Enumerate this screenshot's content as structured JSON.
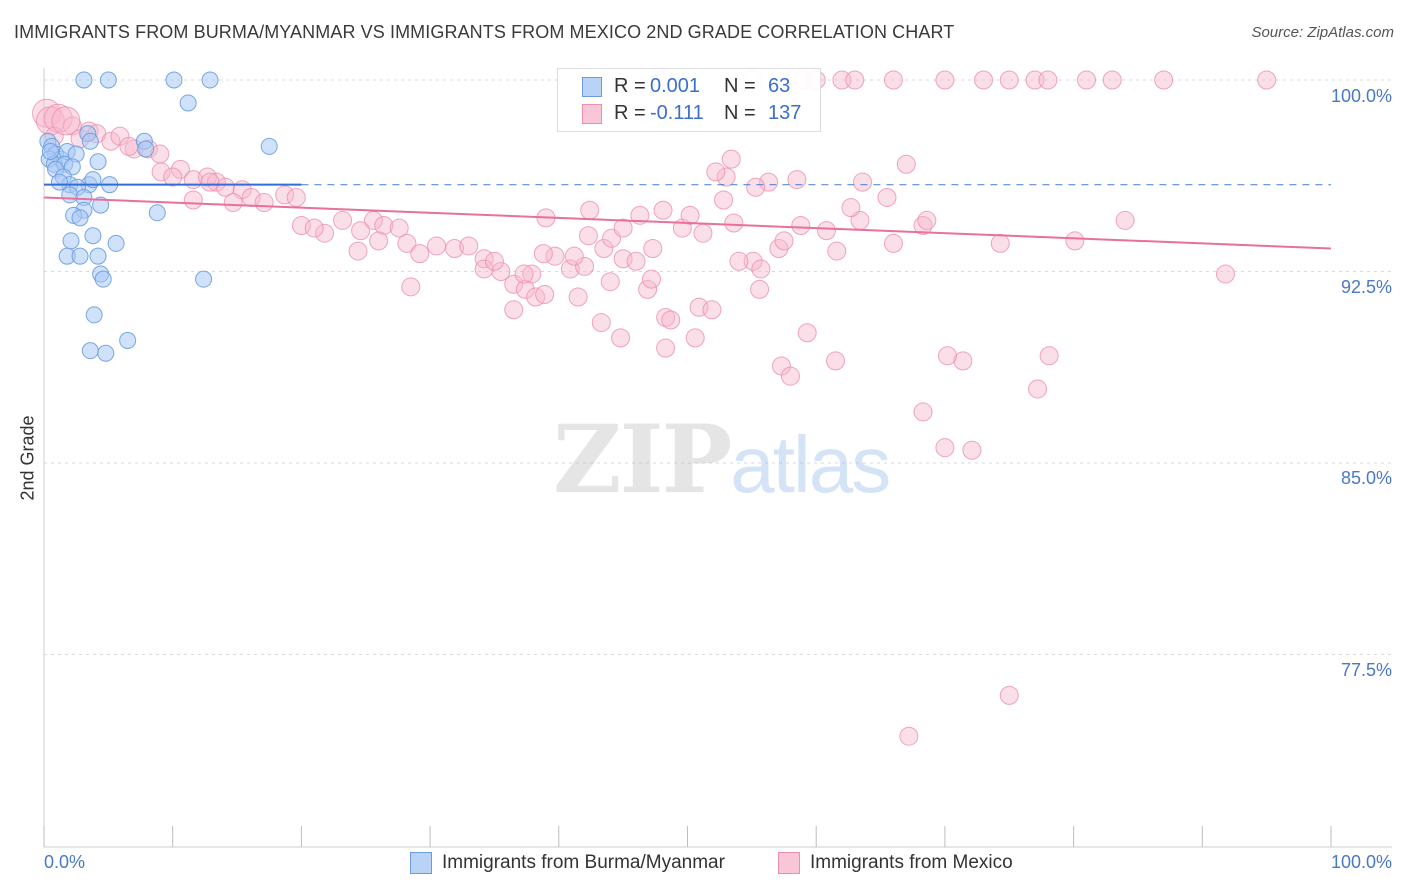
{
  "title": "IMMIGRANTS FROM BURMA/MYANMAR VS IMMIGRANTS FROM MEXICO 2ND GRADE CORRELATION CHART",
  "source": "Source: ZipAtlas.com",
  "watermark": {
    "zip": "ZIP",
    "atlas": "atlas"
  },
  "colors": {
    "blue_fill": "#a9c8f5",
    "blue_stroke": "#6a9de0",
    "blue_line": "#2f6fd6",
    "pink_fill": "#f6b8cc",
    "pink_stroke": "#ec8fae",
    "pink_line": "#e8709a",
    "axis_text": "#4a78c8",
    "grid": "#d9d9d9"
  },
  "legend": {
    "rows": [
      {
        "r_label": "R =",
        "r_value": "0.001",
        "n_label": "N =",
        "n_value": "63"
      },
      {
        "r_label": "R =",
        "r_value": "-0.111",
        "n_label": "N =",
        "n_value": "137"
      }
    ]
  },
  "bottom_legend": {
    "series1": "Immigrants from Burma/Myanmar",
    "series2": "Immigrants from Mexico"
  },
  "chart_data": {
    "type": "scatter",
    "title": "IMMIGRANTS FROM BURMA/MYANMAR VS IMMIGRANTS FROM MEXICO 2ND GRADE CORRELATION CHART",
    "xlabel": "",
    "ylabel": "2nd Grade",
    "xlim": [
      0,
      100
    ],
    "ylim": [
      70.0,
      100.8
    ],
    "x_tick_labels": [
      "0.0%",
      "100.0%"
    ],
    "y_ticks": [
      77.5,
      85.0,
      92.5,
      100.0
    ],
    "y_tick_labels": [
      "77.5%",
      "85.0%",
      "92.5%",
      "100.0%"
    ],
    "grid": true,
    "series": [
      {
        "name": "Immigrants from Burma/Myanmar",
        "color": "#a9c8f5",
        "trend": {
          "x": [
            0,
            20
          ],
          "y": [
            95.9,
            95.9
          ],
          "dashed_extension_to": 100
        },
        "points": [
          {
            "x": 3.1,
            "y": 100
          },
          {
            "x": 5,
            "y": 100
          },
          {
            "x": 10.1,
            "y": 100
          },
          {
            "x": 12.9,
            "y": 100
          },
          {
            "x": 11.2,
            "y": 99.1
          },
          {
            "x": 17.5,
            "y": 97.4
          },
          {
            "x": 7.8,
            "y": 97.6
          },
          {
            "x": 3.4,
            "y": 97.9
          },
          {
            "x": 3.6,
            "y": 97.6
          },
          {
            "x": 0.3,
            "y": 97.6
          },
          {
            "x": 0.6,
            "y": 97.4
          },
          {
            "x": 0.9,
            "y": 97.1
          },
          {
            "x": 1.3,
            "y": 96.9
          },
          {
            "x": 1.8,
            "y": 97.2
          },
          {
            "x": 2.5,
            "y": 97.1
          },
          {
            "x": 0.4,
            "y": 96.9
          },
          {
            "x": 0.8,
            "y": 96.7
          },
          {
            "x": 1.6,
            "y": 96.7
          },
          {
            "x": 2.2,
            "y": 96.6
          },
          {
            "x": 4.2,
            "y": 96.8
          },
          {
            "x": 0.9,
            "y": 96.5
          },
          {
            "x": 1.5,
            "y": 96.2
          },
          {
            "x": 7.9,
            "y": 97.3
          },
          {
            "x": 3.5,
            "y": 95.9
          },
          {
            "x": 2.0,
            "y": 95.9
          },
          {
            "x": 2.6,
            "y": 95.8
          },
          {
            "x": 3.8,
            "y": 96.1
          },
          {
            "x": 5.1,
            "y": 95.9
          },
          {
            "x": 2.0,
            "y": 95.5
          },
          {
            "x": 3.1,
            "y": 95.4
          },
          {
            "x": 4.4,
            "y": 95.1
          },
          {
            "x": 3.1,
            "y": 94.9
          },
          {
            "x": 2.3,
            "y": 94.7
          },
          {
            "x": 2.8,
            "y": 94.6
          },
          {
            "x": 8.8,
            "y": 94.8
          },
          {
            "x": 3.8,
            "y": 93.9
          },
          {
            "x": 2.1,
            "y": 93.7
          },
          {
            "x": 5.6,
            "y": 93.6
          },
          {
            "x": 1.8,
            "y": 93.1
          },
          {
            "x": 2.8,
            "y": 93.1
          },
          {
            "x": 4.2,
            "y": 93.1
          },
          {
            "x": 4.4,
            "y": 92.4
          },
          {
            "x": 4.6,
            "y": 92.2
          },
          {
            "x": 12.4,
            "y": 92.2
          },
          {
            "x": 3.9,
            "y": 90.8
          },
          {
            "x": 6.5,
            "y": 89.8
          },
          {
            "x": 3.6,
            "y": 89.4
          },
          {
            "x": 4.8,
            "y": 89.3
          },
          {
            "x": 1.2,
            "y": 96.0
          },
          {
            "x": 0.5,
            "y": 97.2
          }
        ]
      },
      {
        "name": "Immigrants from Mexico",
        "color": "#f6b8cc",
        "trend": {
          "x": [
            0,
            100
          ],
          "y": [
            95.4,
            93.4
          ]
        },
        "points": [
          {
            "x": 48,
            "y": 100
          },
          {
            "x": 55,
            "y": 100
          },
          {
            "x": 59,
            "y": 100
          },
          {
            "x": 60,
            "y": 100
          },
          {
            "x": 62,
            "y": 100
          },
          {
            "x": 63,
            "y": 100
          },
          {
            "x": 66,
            "y": 100
          },
          {
            "x": 70,
            "y": 100
          },
          {
            "x": 73,
            "y": 100
          },
          {
            "x": 75,
            "y": 100
          },
          {
            "x": 77,
            "y": 100
          },
          {
            "x": 78,
            "y": 100
          },
          {
            "x": 81,
            "y": 100
          },
          {
            "x": 83,
            "y": 100
          },
          {
            "x": 87,
            "y": 100
          },
          {
            "x": 95,
            "y": 100
          },
          {
            "x": 0.2,
            "y": 98.7
          },
          {
            "x": 0.5,
            "y": 98.4
          },
          {
            "x": 1.1,
            "y": 98.5
          },
          {
            "x": 2.2,
            "y": 98.2
          },
          {
            "x": 3.5,
            "y": 98.0
          },
          {
            "x": 4.1,
            "y": 97.9
          },
          {
            "x": 5.2,
            "y": 97.6
          },
          {
            "x": 5.9,
            "y": 97.8
          },
          {
            "x": 0.8,
            "y": 97.8
          },
          {
            "x": 2.8,
            "y": 97.7
          },
          {
            "x": 7.0,
            "y": 97.3
          },
          {
            "x": 8.1,
            "y": 97.3
          },
          {
            "x": 9.0,
            "y": 97.1
          },
          {
            "x": 6.6,
            "y": 97.4
          },
          {
            "x": 1.7,
            "y": 98.4
          },
          {
            "x": 10.6,
            "y": 96.5
          },
          {
            "x": 11.6,
            "y": 96.1
          },
          {
            "x": 12.7,
            "y": 96.2
          },
          {
            "x": 13.4,
            "y": 96.0
          },
          {
            "x": 14.1,
            "y": 95.8
          },
          {
            "x": 15.4,
            "y": 95.7
          },
          {
            "x": 16.1,
            "y": 95.4
          },
          {
            "x": 17.1,
            "y": 95.2
          },
          {
            "x": 18.7,
            "y": 95.5
          },
          {
            "x": 19.6,
            "y": 95.4
          },
          {
            "x": 14.7,
            "y": 95.2
          },
          {
            "x": 11.6,
            "y": 95.3
          },
          {
            "x": 9.1,
            "y": 96.4
          },
          {
            "x": 10.0,
            "y": 96.2
          },
          {
            "x": 12.9,
            "y": 96.0
          },
          {
            "x": 20.0,
            "y": 94.3
          },
          {
            "x": 21.8,
            "y": 94.0
          },
          {
            "x": 23.2,
            "y": 94.5
          },
          {
            "x": 24.6,
            "y": 94.1
          },
          {
            "x": 25.6,
            "y": 94.5
          },
          {
            "x": 26.4,
            "y": 94.3
          },
          {
            "x": 27.6,
            "y": 94.2
          },
          {
            "x": 26.0,
            "y": 93.7
          },
          {
            "x": 24.4,
            "y": 93.3
          },
          {
            "x": 28.2,
            "y": 93.6
          },
          {
            "x": 29.2,
            "y": 93.2
          },
          {
            "x": 30.5,
            "y": 93.5
          },
          {
            "x": 31.9,
            "y": 93.4
          },
          {
            "x": 33.0,
            "y": 93.5
          },
          {
            "x": 34.2,
            "y": 93.0
          },
          {
            "x": 34.2,
            "y": 92.6
          },
          {
            "x": 35.5,
            "y": 92.5
          },
          {
            "x": 36.5,
            "y": 92.0
          },
          {
            "x": 37.4,
            "y": 91.8
          },
          {
            "x": 38.2,
            "y": 91.5
          },
          {
            "x": 38.9,
            "y": 91.6
          },
          {
            "x": 37.9,
            "y": 92.4
          },
          {
            "x": 28.5,
            "y": 91.9
          },
          {
            "x": 35.0,
            "y": 92.9
          },
          {
            "x": 21.0,
            "y": 94.2
          },
          {
            "x": 39.0,
            "y": 94.6
          },
          {
            "x": 40.9,
            "y": 92.6
          },
          {
            "x": 42.0,
            "y": 92.7
          },
          {
            "x": 41.2,
            "y": 93.1
          },
          {
            "x": 39.7,
            "y": 93.1
          },
          {
            "x": 38.8,
            "y": 93.2
          },
          {
            "x": 37.3,
            "y": 92.4
          },
          {
            "x": 43.5,
            "y": 93.4
          },
          {
            "x": 44.1,
            "y": 93.8
          },
          {
            "x": 45.0,
            "y": 94.2
          },
          {
            "x": 46.3,
            "y": 94.7
          },
          {
            "x": 47.3,
            "y": 93.4
          },
          {
            "x": 48.1,
            "y": 94.9
          },
          {
            "x": 49.6,
            "y": 94.2
          },
          {
            "x": 50.2,
            "y": 94.7
          },
          {
            "x": 51.2,
            "y": 94.0
          },
          {
            "x": 45.0,
            "y": 93.0
          },
          {
            "x": 46.0,
            "y": 92.9
          },
          {
            "x": 42.4,
            "y": 94.9
          },
          {
            "x": 44.0,
            "y": 92.1
          },
          {
            "x": 53.6,
            "y": 94.4
          },
          {
            "x": 55.1,
            "y": 92.9
          },
          {
            "x": 55.7,
            "y": 92.6
          },
          {
            "x": 55.6,
            "y": 91.8
          },
          {
            "x": 57.1,
            "y": 93.4
          },
          {
            "x": 57.5,
            "y": 93.7
          },
          {
            "x": 54.0,
            "y": 92.9
          },
          {
            "x": 52.8,
            "y": 95.3
          },
          {
            "x": 56.3,
            "y": 96.0
          },
          {
            "x": 58.5,
            "y": 96.1
          },
          {
            "x": 53.0,
            "y": 96.2
          },
          {
            "x": 52.2,
            "y": 96.4
          },
          {
            "x": 53.4,
            "y": 96.9
          },
          {
            "x": 63.6,
            "y": 96.0
          },
          {
            "x": 67.0,
            "y": 96.7
          },
          {
            "x": 58.8,
            "y": 94.3
          },
          {
            "x": 60.8,
            "y": 94.1
          },
          {
            "x": 63.4,
            "y": 94.5
          },
          {
            "x": 55.3,
            "y": 95.8
          },
          {
            "x": 62.7,
            "y": 95.0
          },
          {
            "x": 66.0,
            "y": 93.6
          },
          {
            "x": 68.3,
            "y": 94.3
          },
          {
            "x": 65.5,
            "y": 95.4
          },
          {
            "x": 68.6,
            "y": 94.5
          },
          {
            "x": 61.6,
            "y": 93.3
          },
          {
            "x": 42.3,
            "y": 93.9
          },
          {
            "x": 36.5,
            "y": 91.0
          },
          {
            "x": 41.5,
            "y": 91.5
          },
          {
            "x": 46.9,
            "y": 91.8
          },
          {
            "x": 48.3,
            "y": 90.7
          },
          {
            "x": 48.3,
            "y": 89.5
          },
          {
            "x": 50.6,
            "y": 89.9
          },
          {
            "x": 43.3,
            "y": 90.5
          },
          {
            "x": 44.8,
            "y": 89.9
          },
          {
            "x": 47.2,
            "y": 92.2
          },
          {
            "x": 48.7,
            "y": 90.6
          },
          {
            "x": 50.9,
            "y": 91.1
          },
          {
            "x": 51.9,
            "y": 91.0
          },
          {
            "x": 59.3,
            "y": 90.1
          },
          {
            "x": 61.5,
            "y": 89.0
          },
          {
            "x": 57.3,
            "y": 88.8
          },
          {
            "x": 58.0,
            "y": 88.4
          },
          {
            "x": 71.4,
            "y": 89.0
          },
          {
            "x": 77.2,
            "y": 87.9
          },
          {
            "x": 68.3,
            "y": 87.0
          },
          {
            "x": 70.0,
            "y": 85.6
          },
          {
            "x": 72.1,
            "y": 85.5
          },
          {
            "x": 75.0,
            "y": 75.9
          },
          {
            "x": 67.2,
            "y": 74.3
          },
          {
            "x": 91.8,
            "y": 92.4
          },
          {
            "x": 80.1,
            "y": 93.7
          },
          {
            "x": 84.0,
            "y": 94.5
          },
          {
            "x": 74.3,
            "y": 93.6
          },
          {
            "x": 70.2,
            "y": 89.2
          },
          {
            "x": 78.1,
            "y": 89.2
          }
        ]
      }
    ]
  }
}
